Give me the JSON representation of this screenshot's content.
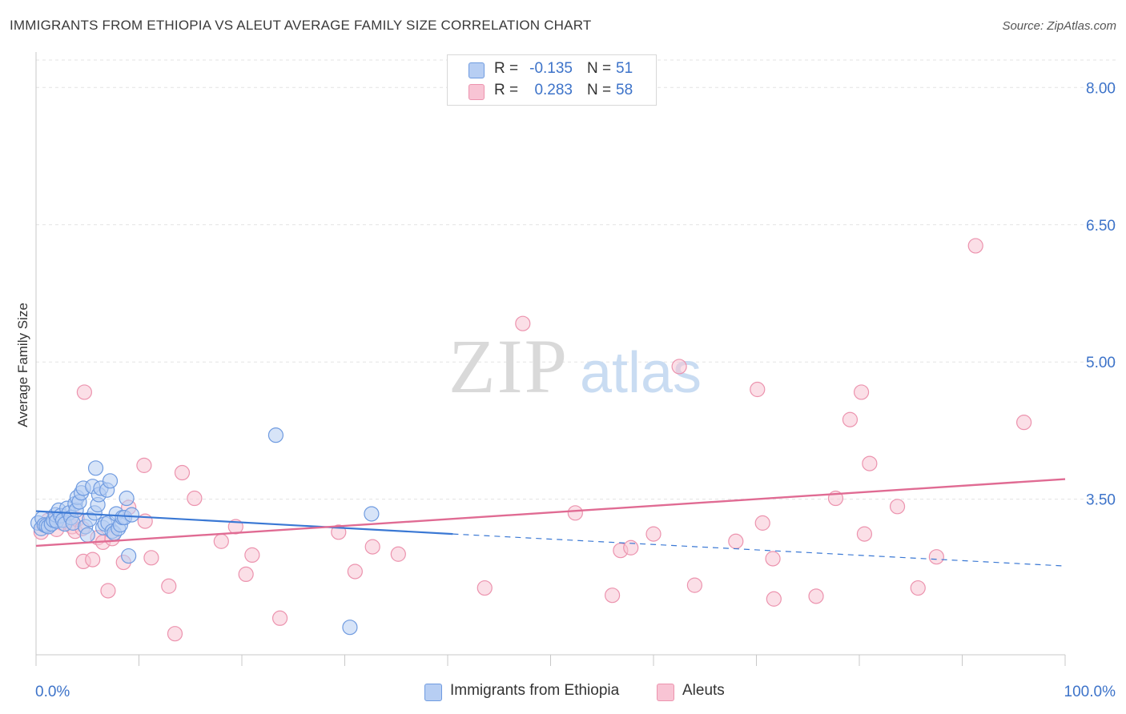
{
  "title": "IMMIGRANTS FROM ETHIOPIA VS ALEUT AVERAGE FAMILY SIZE CORRELATION CHART",
  "source": "Source: ZipAtlas.com",
  "watermark": {
    "zip": "ZIP",
    "atlas": "atlas"
  },
  "legend": {
    "r_label": "R =",
    "n_label": "N =",
    "series": [
      {
        "r": "-0.135",
        "n": "51",
        "fill": "#b7cef3",
        "stroke": "#6f9be0"
      },
      {
        "r": "0.283",
        "n": "58",
        "fill": "#f8c4d4",
        "stroke": "#ec93ae"
      }
    ]
  },
  "bottom_legend": [
    "Immigrants from Ethiopia",
    "Aleuts"
  ],
  "chart_data": {
    "type": "scatter",
    "title": "IMMIGRANTS FROM ETHIOPIA VS ALEUT AVERAGE FAMILY SIZE CORRELATION CHART",
    "xlabel": "",
    "ylabel": "Average Family Size",
    "xlim": [
      0,
      100
    ],
    "ylim": [
      1.8,
      8.3
    ],
    "x_tick_labels": [
      "0.0%",
      "100.0%"
    ],
    "y_ticks": [
      3.5,
      5.0,
      6.5,
      8.0
    ],
    "y_tick_labels": [
      "3.50",
      "5.00",
      "6.50",
      "8.00"
    ],
    "grid": true,
    "series": [
      {
        "name": "Immigrants from Ethiopia",
        "color": "#6f9be0",
        "fill": "#b7cef3",
        "trend": {
          "x0": 0,
          "y0": 3.37,
          "x1": 40.5,
          "y1": 3.12,
          "dash_to_x": 100,
          "dash_to_y": 2.77
        },
        "points": [
          [
            0.2,
            3.24
          ],
          [
            0.5,
            3.18
          ],
          [
            0.6,
            3.29
          ],
          [
            0.8,
            3.22
          ],
          [
            1.0,
            3.21
          ],
          [
            1.2,
            3.2
          ],
          [
            1.5,
            3.23
          ],
          [
            1.7,
            3.27
          ],
          [
            1.9,
            3.33
          ],
          [
            2.0,
            3.26
          ],
          [
            2.2,
            3.38
          ],
          [
            2.4,
            3.32
          ],
          [
            2.6,
            3.27
          ],
          [
            2.8,
            3.23
          ],
          [
            3.0,
            3.4
          ],
          [
            3.2,
            3.35
          ],
          [
            3.4,
            3.3
          ],
          [
            3.6,
            3.24
          ],
          [
            3.8,
            3.45
          ],
          [
            3.9,
            3.38
          ],
          [
            4.0,
            3.52
          ],
          [
            4.2,
            3.47
          ],
          [
            4.4,
            3.57
          ],
          [
            4.6,
            3.62
          ],
          [
            4.8,
            3.2
          ],
          [
            5.0,
            3.11
          ],
          [
            5.2,
            3.28
          ],
          [
            5.5,
            3.64
          ],
          [
            5.7,
            3.35
          ],
          [
            5.8,
            3.84
          ],
          [
            6.0,
            3.44
          ],
          [
            6.1,
            3.55
          ],
          [
            6.3,
            3.62
          ],
          [
            6.5,
            3.19
          ],
          [
            6.7,
            3.23
          ],
          [
            6.9,
            3.6
          ],
          [
            7.0,
            3.24
          ],
          [
            7.2,
            3.7
          ],
          [
            7.4,
            3.15
          ],
          [
            7.6,
            3.13
          ],
          [
            7.8,
            3.34
          ],
          [
            8.0,
            3.18
          ],
          [
            8.2,
            3.22
          ],
          [
            8.4,
            3.3
          ],
          [
            8.6,
            3.3
          ],
          [
            8.8,
            3.51
          ],
          [
            9.0,
            2.88
          ],
          [
            9.3,
            3.33
          ],
          [
            23.3,
            4.2
          ],
          [
            32.6,
            3.34
          ],
          [
            30.5,
            2.1
          ]
        ]
      },
      {
        "name": "Aleuts",
        "color": "#ec93ae",
        "fill": "#f8c4d4",
        "trend": {
          "x0": 0,
          "y0": 2.99,
          "x1": 100,
          "y1": 3.72
        },
        "points": [
          [
            0.5,
            3.14
          ],
          [
            1.2,
            3.27
          ],
          [
            2.5,
            3.24
          ],
          [
            3.5,
            3.2
          ],
          [
            3.8,
            3.15
          ],
          [
            4.0,
            3.28
          ],
          [
            4.5,
            3.18
          ],
          [
            4.6,
            2.82
          ],
          [
            4.7,
            4.67
          ],
          [
            5.5,
            2.84
          ],
          [
            6.0,
            3.08
          ],
          [
            6.5,
            3.03
          ],
          [
            7.0,
            2.5
          ],
          [
            7.4,
            3.07
          ],
          [
            8.5,
            2.81
          ],
          [
            9.0,
            3.41
          ],
          [
            10.5,
            3.87
          ],
          [
            10.6,
            3.26
          ],
          [
            11.2,
            2.86
          ],
          [
            12.9,
            2.55
          ],
          [
            13.5,
            2.03
          ],
          [
            14.2,
            3.79
          ],
          [
            15.4,
            3.51
          ],
          [
            18.0,
            3.04
          ],
          [
            19.4,
            3.2
          ],
          [
            20.4,
            2.68
          ],
          [
            21.0,
            2.89
          ],
          [
            23.7,
            2.2
          ],
          [
            29.4,
            3.14
          ],
          [
            31.0,
            2.71
          ],
          [
            32.7,
            2.98
          ],
          [
            35.2,
            2.9
          ],
          [
            43.6,
            2.53
          ],
          [
            47.3,
            5.42
          ],
          [
            52.4,
            3.35
          ],
          [
            56.0,
            2.45
          ],
          [
            56.8,
            2.94
          ],
          [
            57.8,
            2.97
          ],
          [
            60.0,
            3.12
          ],
          [
            62.5,
            4.95
          ],
          [
            64.0,
            2.56
          ],
          [
            68.0,
            3.04
          ],
          [
            70.1,
            4.7
          ],
          [
            70.6,
            3.24
          ],
          [
            71.6,
            2.85
          ],
          [
            71.7,
            2.41
          ],
          [
            75.8,
            2.44
          ],
          [
            77.7,
            3.51
          ],
          [
            79.1,
            4.37
          ],
          [
            80.2,
            4.67
          ],
          [
            80.5,
            3.12
          ],
          [
            81.0,
            3.89
          ],
          [
            83.7,
            3.42
          ],
          [
            85.7,
            2.53
          ],
          [
            87.5,
            2.87
          ],
          [
            91.3,
            6.27
          ],
          [
            96.0,
            4.34
          ],
          [
            2.0,
            3.17
          ]
        ]
      }
    ]
  }
}
